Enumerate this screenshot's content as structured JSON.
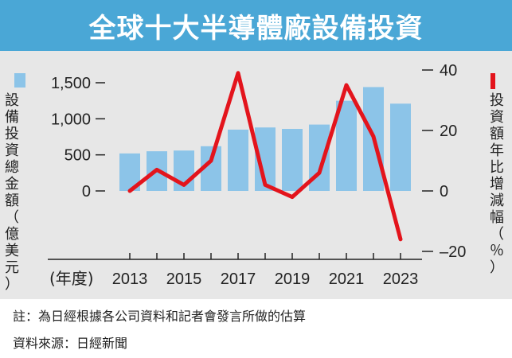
{
  "title": "全球十大半導體廠設備投資",
  "colors": {
    "title_bg": "#4aa7d6",
    "panel_bg": "#e7e7e7",
    "bar": "#8cc4e8",
    "line": "#e3141c",
    "axis": "#222222"
  },
  "left_axis_label": "設備投資總金額（億美元）",
  "right_axis_label": "投資額年比增減幅（％）",
  "footnote": "註：為日經根據各公司資料和記者會發言所做的估算",
  "source": "資料來源：日經新聞",
  "chart_data": {
    "type": "bar",
    "x_unit_label": "(年度)",
    "categories": [
      "2013",
      "2014",
      "2015",
      "2016",
      "2017",
      "2018",
      "2019",
      "2020",
      "2021",
      "2022",
      "2023"
    ],
    "x_tick_labels": [
      "2013",
      "2015",
      "2017",
      "2019",
      "2021",
      "2023"
    ],
    "series": [
      {
        "type": "bar",
        "axis": "left",
        "values": [
          520,
          550,
          560,
          620,
          850,
          880,
          860,
          920,
          1250,
          1440,
          1210
        ]
      },
      {
        "type": "line",
        "axis": "right",
        "values": [
          0,
          7,
          2,
          10,
          39,
          2,
          -2,
          6,
          35,
          18,
          -16
        ]
      }
    ],
    "left_axis": {
      "ylim": [
        0,
        1700
      ],
      "ticks": [
        0,
        500,
        1000,
        1500
      ],
      "tick_labels": [
        "0",
        "500",
        "1,000",
        "1,500"
      ]
    },
    "right_axis": {
      "ylim": [
        -20,
        40
      ],
      "ticks": [
        -20,
        0,
        20,
        40
      ],
      "tick_labels": [
        "–20",
        "0",
        "20",
        "40"
      ]
    },
    "grid": false,
    "legend": "left-axis and right-axis markers"
  }
}
